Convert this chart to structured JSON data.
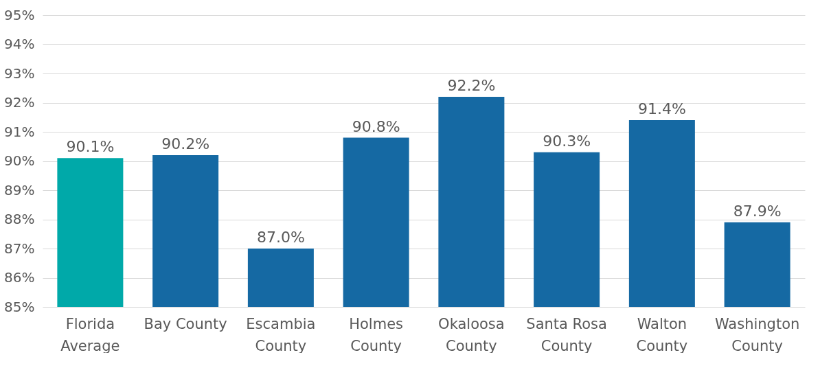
{
  "chart_data": {
    "type": "bar",
    "categories": [
      "Florida Average",
      "Bay County",
      "Escambia County",
      "Holmes County",
      "Okaloosa County",
      "Santa Rosa County",
      "Walton County",
      "Washington County"
    ],
    "values": [
      90.1,
      90.2,
      87.0,
      90.8,
      92.2,
      90.3,
      91.4,
      87.9
    ],
    "colors": [
      "#00a9a9",
      "#1569a3",
      "#1569a3",
      "#1569a3",
      "#1569a3",
      "#1569a3",
      "#1569a3",
      "#1569a3"
    ],
    "value_labels": [
      "90.1%",
      "90.2%",
      "87.0%",
      "90.8%",
      "92.2%",
      "90.3%",
      "91.4%",
      "87.9%"
    ],
    "ylim": [
      85,
      95
    ],
    "yticks": [
      {
        "value": 85,
        "label": "85%"
      },
      {
        "value": 86,
        "label": "86%"
      },
      {
        "value": 87,
        "label": "87%"
      },
      {
        "value": 88,
        "label": "88%"
      },
      {
        "value": 89,
        "label": "89%"
      },
      {
        "value": 90,
        "label": "90%"
      },
      {
        "value": 91,
        "label": "91%"
      },
      {
        "value": 92,
        "label": "92%"
      },
      {
        "value": 93,
        "label": "93%"
      },
      {
        "value": 94,
        "label": "94%"
      },
      {
        "value": 95,
        "label": "95%"
      }
    ],
    "grid": "y"
  }
}
